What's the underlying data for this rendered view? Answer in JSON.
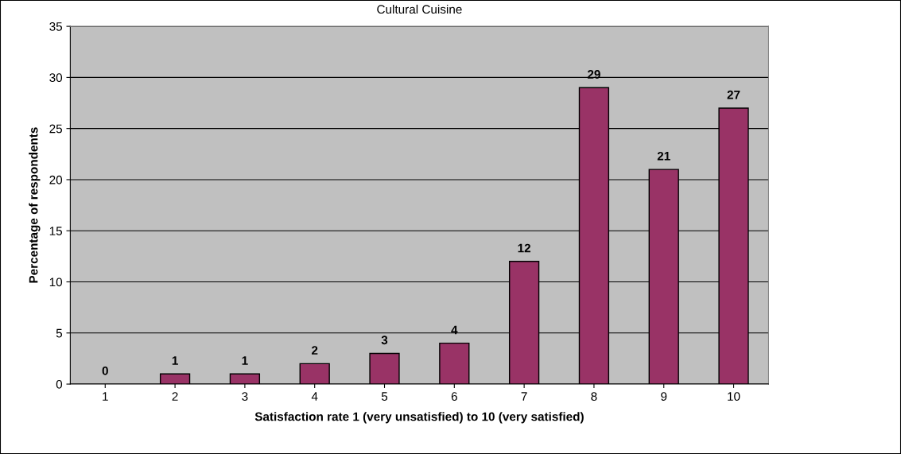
{
  "chart_data": {
    "type": "bar",
    "title": "Cultural Cuisine",
    "xlabel": "Satisfaction rate 1 (very unsatisfied) to 10 (very satisfied)",
    "ylabel": "Percentage of respondents",
    "categories": [
      "1",
      "2",
      "3",
      "4",
      "5",
      "6",
      "7",
      "8",
      "9",
      "10"
    ],
    "values": [
      0,
      1,
      1,
      2,
      3,
      4,
      12,
      29,
      21,
      27
    ],
    "color": "#993366",
    "ylim": [
      0,
      35
    ],
    "yticks": [
      0,
      5,
      10,
      15,
      20,
      25,
      30,
      35
    ],
    "grid": "y",
    "data_labels": true
  }
}
